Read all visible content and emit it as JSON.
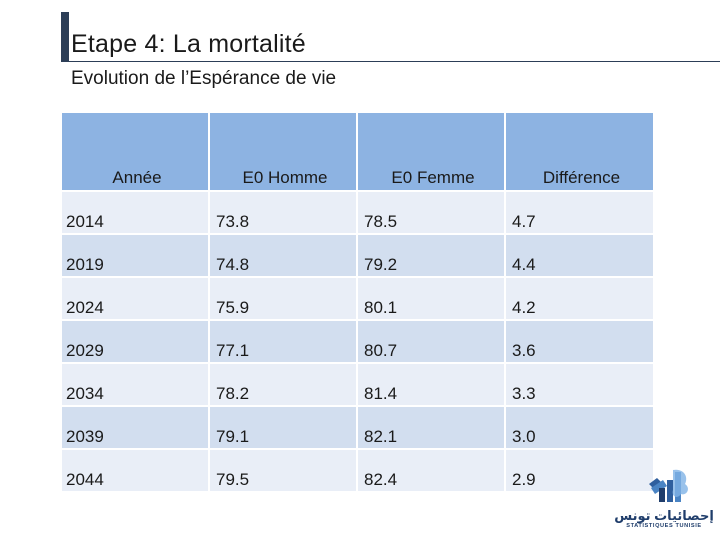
{
  "slide": {
    "title": "Etape 4: La mortalité",
    "subtitle": "Evolution de l’Espérance de vie"
  },
  "table": {
    "headers": [
      "Année",
      "E0 Homme",
      "E0 Femme",
      "Différence"
    ],
    "rows": [
      [
        "2014",
        "73.8",
        "78.5",
        "4.7"
      ],
      [
        "2019",
        "74.8",
        "79.2",
        "4.4"
      ],
      [
        "2024",
        "75.9",
        "80.1",
        "4.2"
      ],
      [
        "2029",
        "77.1",
        "80.7",
        "3.6"
      ],
      [
        "2034",
        "78.2",
        "81.4",
        "3.3"
      ],
      [
        "2039",
        "79.1",
        "82.1",
        "3.0"
      ],
      [
        "2044",
        "79.5",
        "82.4",
        "2.9"
      ]
    ]
  },
  "logo": {
    "brand": "إحصائيات تونس",
    "sub": "STATISTIQUES TUNISIE"
  },
  "colors": {
    "header_bg": "#8db3e2",
    "row_light": "#e9eef7",
    "row_dark": "#d2deef",
    "title_accent": "#2c3e57"
  }
}
